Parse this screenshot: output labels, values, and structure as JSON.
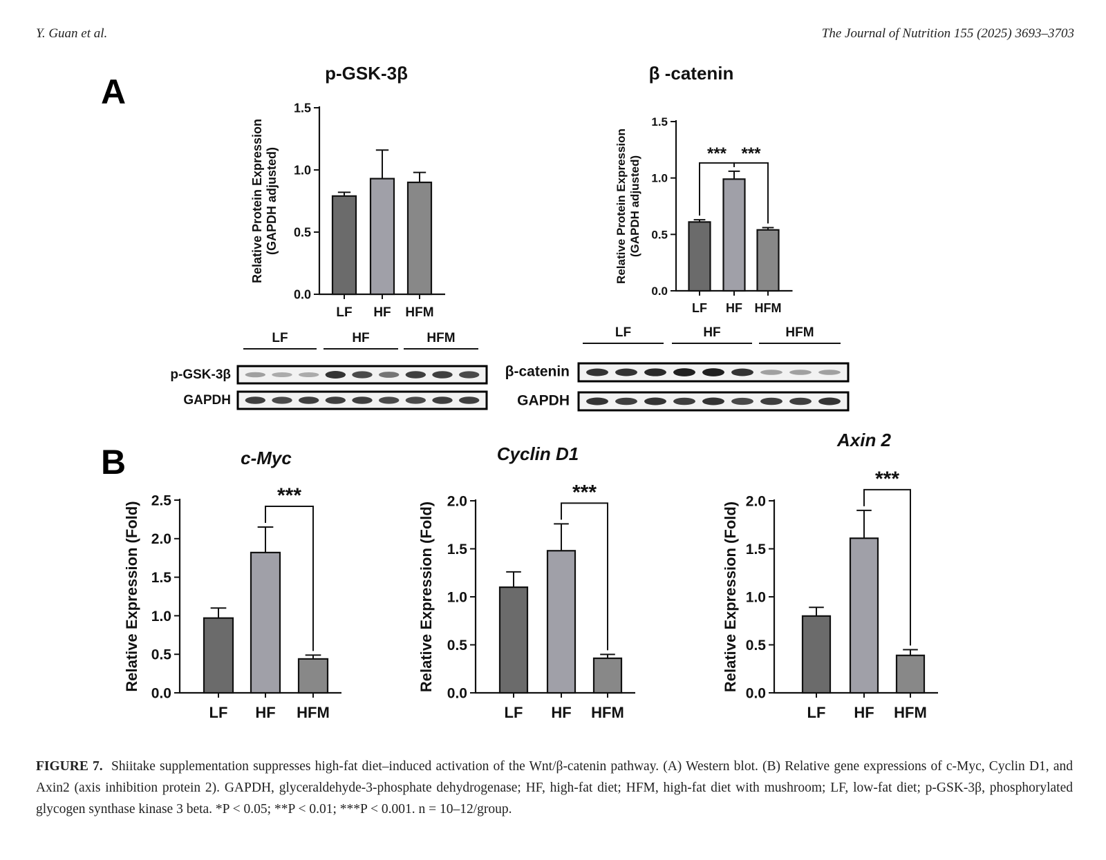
{
  "header": {
    "left": "Y. Guan et al.",
    "right": "The Journal of Nutrition 155 (2025) 3693–3703"
  },
  "panels": {
    "a": "A",
    "b": "B"
  },
  "caption": {
    "label": "FIGURE 7.",
    "text": "Shiitake supplementation suppresses high-fat diet–induced activation of the Wnt/β-catenin pathway. (A) Western blot. (B) Relative gene expressions of c-Myc, Cyclin D1, and Axin2 (axis inhibition protein 2). GAPDH, glyceraldehyde-3-phosphate dehydrogenase; HF, high-fat diet; HFM, high-fat diet with mushroom; LF, low-fat diet; p-GSK-3β, phosphorylated glycogen synthase kinase 3 beta. *P < 0.05; **P < 0.01; ***P < 0.001. n = 10–12/group."
  },
  "colors": {
    "LF": "#6b6b6b",
    "HF": "#a0a0a8",
    "HFM": "#888888"
  },
  "blots": [
    {
      "groups": [
        "LF",
        "HF",
        "HFM"
      ],
      "rows": [
        {
          "label": "p-GSK-3β",
          "intensity": [
            0.35,
            0.3,
            0.3,
            0.85,
            0.75,
            0.55,
            0.8,
            0.8,
            0.75
          ]
        },
        {
          "label": "GAPDH",
          "intensity": [
            0.8,
            0.75,
            0.8,
            0.8,
            0.8,
            0.75,
            0.75,
            0.8,
            0.8
          ]
        }
      ]
    },
    {
      "groups": [
        "LF",
        "HF",
        "HFM"
      ],
      "rows": [
        {
          "label": "β-catenin",
          "intensity": [
            0.85,
            0.85,
            0.9,
            0.95,
            0.95,
            0.85,
            0.35,
            0.35,
            0.35
          ]
        },
        {
          "label": "GAPDH",
          "intensity": [
            0.85,
            0.8,
            0.85,
            0.8,
            0.85,
            0.75,
            0.8,
            0.8,
            0.85
          ]
        }
      ]
    }
  ],
  "chart_data": [
    {
      "type": "bar",
      "title": "p-GSK-3β",
      "ylabel": "Relative Protein Expression\n(GAPDH adjusted)",
      "categories": [
        "LF",
        "HF",
        "HFM"
      ],
      "values": [
        0.79,
        0.93,
        0.9
      ],
      "errors": [
        0.03,
        0.23,
        0.08
      ],
      "ylim": [
        0,
        1.5
      ],
      "yticks": [
        "0.0",
        "0.5",
        "1.0",
        "1.5"
      ],
      "significance": []
    },
    {
      "type": "bar",
      "title": "β -catenin",
      "ylabel": "Relative Protein Expression\n(GAPDH adjusted)",
      "categories": [
        "LF",
        "HF",
        "HFM"
      ],
      "values": [
        0.61,
        0.99,
        0.54
      ],
      "errors": [
        0.02,
        0.07,
        0.02
      ],
      "ylim": [
        0,
        1.5
      ],
      "yticks": [
        "0.0",
        "0.5",
        "1.0",
        "1.5"
      ],
      "significance": [
        {
          "from": "LF",
          "to": "HF",
          "label": "***"
        },
        {
          "from": "HF",
          "to": "HFM",
          "label": "***"
        }
      ]
    },
    {
      "type": "bar",
      "title": "c-Myc",
      "ylabel": "Relative Expression (Fold)",
      "categories": [
        "LF",
        "HF",
        "HFM"
      ],
      "values": [
        0.97,
        1.82,
        0.44
      ],
      "errors": [
        0.13,
        0.33,
        0.05
      ],
      "ylim": [
        0,
        2.5
      ],
      "yticks": [
        "0.0",
        "0.5",
        "1.0",
        "1.5",
        "2.0",
        "2.5"
      ],
      "significance": [
        {
          "from": "HF",
          "to": "HFM",
          "label": "***"
        }
      ]
    },
    {
      "type": "bar",
      "title": "Cyclin D1",
      "ylabel": "Relative Expression (Fold)",
      "categories": [
        "LF",
        "HF",
        "HFM"
      ],
      "values": [
        1.1,
        1.48,
        0.36
      ],
      "errors": [
        0.16,
        0.28,
        0.04
      ],
      "ylim": [
        0,
        2.0
      ],
      "yticks": [
        "0.0",
        "0.5",
        "1.0",
        "1.5",
        "2.0"
      ],
      "significance": [
        {
          "from": "HF",
          "to": "HFM",
          "label": "***"
        }
      ]
    },
    {
      "type": "bar",
      "title": "Axin 2",
      "ylabel": "Relative Expression (Fold)",
      "categories": [
        "LF",
        "HF",
        "HFM"
      ],
      "values": [
        0.8,
        1.61,
        0.39
      ],
      "errors": [
        0.09,
        0.29,
        0.06
      ],
      "ylim": [
        0,
        2.0
      ],
      "yticks": [
        "0.0",
        "0.5",
        "1.0",
        "1.5",
        "2.0"
      ],
      "significance": [
        {
          "from": "HF",
          "to": "HFM",
          "label": "***"
        }
      ]
    }
  ]
}
